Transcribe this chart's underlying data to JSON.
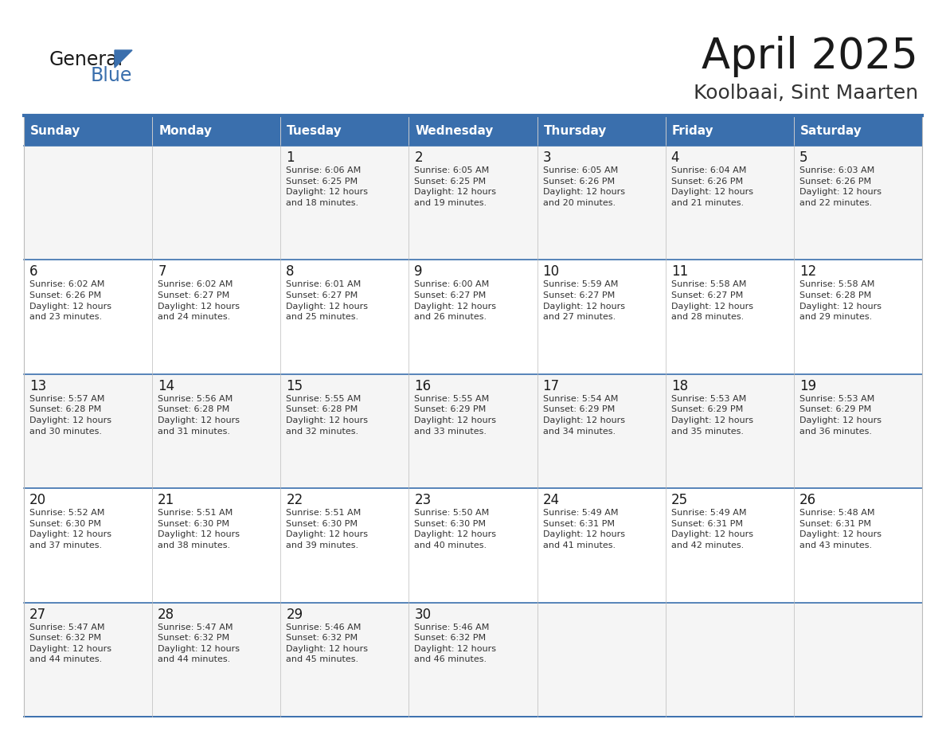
{
  "title": "April 2025",
  "subtitle": "Koolbaai, Sint Maarten",
  "days_of_week": [
    "Sunday",
    "Monday",
    "Tuesday",
    "Wednesday",
    "Thursday",
    "Friday",
    "Saturday"
  ],
  "header_bg": "#3a6fad",
  "header_text": "#FFFFFF",
  "row_bg_light": "#f5f5f5",
  "row_bg_white": "#FFFFFF",
  "border_color_blue": "#3a6fad",
  "border_color_light": "#bbbbbb",
  "text_color": "#222222",
  "info_color": "#333333",
  "cal_data": [
    [
      {
        "day": "",
        "info": ""
      },
      {
        "day": "",
        "info": ""
      },
      {
        "day": "1",
        "info": "Sunrise: 6:06 AM\nSunset: 6:25 PM\nDaylight: 12 hours\nand 18 minutes."
      },
      {
        "day": "2",
        "info": "Sunrise: 6:05 AM\nSunset: 6:25 PM\nDaylight: 12 hours\nand 19 minutes."
      },
      {
        "day": "3",
        "info": "Sunrise: 6:05 AM\nSunset: 6:26 PM\nDaylight: 12 hours\nand 20 minutes."
      },
      {
        "day": "4",
        "info": "Sunrise: 6:04 AM\nSunset: 6:26 PM\nDaylight: 12 hours\nand 21 minutes."
      },
      {
        "day": "5",
        "info": "Sunrise: 6:03 AM\nSunset: 6:26 PM\nDaylight: 12 hours\nand 22 minutes."
      }
    ],
    [
      {
        "day": "6",
        "info": "Sunrise: 6:02 AM\nSunset: 6:26 PM\nDaylight: 12 hours\nand 23 minutes."
      },
      {
        "day": "7",
        "info": "Sunrise: 6:02 AM\nSunset: 6:27 PM\nDaylight: 12 hours\nand 24 minutes."
      },
      {
        "day": "8",
        "info": "Sunrise: 6:01 AM\nSunset: 6:27 PM\nDaylight: 12 hours\nand 25 minutes."
      },
      {
        "day": "9",
        "info": "Sunrise: 6:00 AM\nSunset: 6:27 PM\nDaylight: 12 hours\nand 26 minutes."
      },
      {
        "day": "10",
        "info": "Sunrise: 5:59 AM\nSunset: 6:27 PM\nDaylight: 12 hours\nand 27 minutes."
      },
      {
        "day": "11",
        "info": "Sunrise: 5:58 AM\nSunset: 6:27 PM\nDaylight: 12 hours\nand 28 minutes."
      },
      {
        "day": "12",
        "info": "Sunrise: 5:58 AM\nSunset: 6:28 PM\nDaylight: 12 hours\nand 29 minutes."
      }
    ],
    [
      {
        "day": "13",
        "info": "Sunrise: 5:57 AM\nSunset: 6:28 PM\nDaylight: 12 hours\nand 30 minutes."
      },
      {
        "day": "14",
        "info": "Sunrise: 5:56 AM\nSunset: 6:28 PM\nDaylight: 12 hours\nand 31 minutes."
      },
      {
        "day": "15",
        "info": "Sunrise: 5:55 AM\nSunset: 6:28 PM\nDaylight: 12 hours\nand 32 minutes."
      },
      {
        "day": "16",
        "info": "Sunrise: 5:55 AM\nSunset: 6:29 PM\nDaylight: 12 hours\nand 33 minutes."
      },
      {
        "day": "17",
        "info": "Sunrise: 5:54 AM\nSunset: 6:29 PM\nDaylight: 12 hours\nand 34 minutes."
      },
      {
        "day": "18",
        "info": "Sunrise: 5:53 AM\nSunset: 6:29 PM\nDaylight: 12 hours\nand 35 minutes."
      },
      {
        "day": "19",
        "info": "Sunrise: 5:53 AM\nSunset: 6:29 PM\nDaylight: 12 hours\nand 36 minutes."
      }
    ],
    [
      {
        "day": "20",
        "info": "Sunrise: 5:52 AM\nSunset: 6:30 PM\nDaylight: 12 hours\nand 37 minutes."
      },
      {
        "day": "21",
        "info": "Sunrise: 5:51 AM\nSunset: 6:30 PM\nDaylight: 12 hours\nand 38 minutes."
      },
      {
        "day": "22",
        "info": "Sunrise: 5:51 AM\nSunset: 6:30 PM\nDaylight: 12 hours\nand 39 minutes."
      },
      {
        "day": "23",
        "info": "Sunrise: 5:50 AM\nSunset: 6:30 PM\nDaylight: 12 hours\nand 40 minutes."
      },
      {
        "day": "24",
        "info": "Sunrise: 5:49 AM\nSunset: 6:31 PM\nDaylight: 12 hours\nand 41 minutes."
      },
      {
        "day": "25",
        "info": "Sunrise: 5:49 AM\nSunset: 6:31 PM\nDaylight: 12 hours\nand 42 minutes."
      },
      {
        "day": "26",
        "info": "Sunrise: 5:48 AM\nSunset: 6:31 PM\nDaylight: 12 hours\nand 43 minutes."
      }
    ],
    [
      {
        "day": "27",
        "info": "Sunrise: 5:47 AM\nSunset: 6:32 PM\nDaylight: 12 hours\nand 44 minutes."
      },
      {
        "day": "28",
        "info": "Sunrise: 5:47 AM\nSunset: 6:32 PM\nDaylight: 12 hours\nand 44 minutes."
      },
      {
        "day": "29",
        "info": "Sunrise: 5:46 AM\nSunset: 6:32 PM\nDaylight: 12 hours\nand 45 minutes."
      },
      {
        "day": "30",
        "info": "Sunrise: 5:46 AM\nSunset: 6:32 PM\nDaylight: 12 hours\nand 46 minutes."
      },
      {
        "day": "",
        "info": ""
      },
      {
        "day": "",
        "info": ""
      },
      {
        "day": "",
        "info": ""
      }
    ]
  ]
}
